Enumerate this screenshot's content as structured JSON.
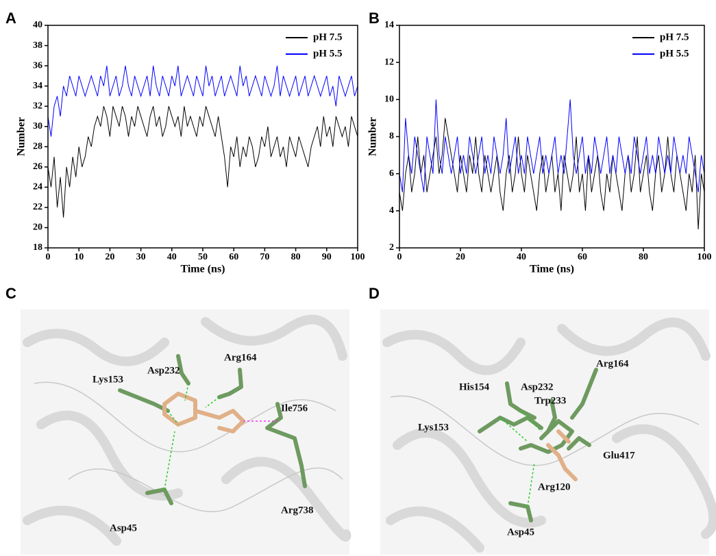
{
  "chart_data": [
    {
      "type": "line",
      "panel": "A",
      "xlabel": "Time (ns)",
      "ylabel": "Number",
      "legend": "upper right",
      "x": [
        0,
        1,
        2,
        3,
        4,
        5,
        6,
        7,
        8,
        9,
        10,
        11,
        12,
        13,
        14,
        15,
        16,
        17,
        18,
        19,
        20,
        21,
        22,
        23,
        24,
        25,
        26,
        27,
        28,
        29,
        30,
        31,
        32,
        33,
        34,
        35,
        36,
        37,
        38,
        39,
        40,
        41,
        42,
        43,
        44,
        45,
        46,
        47,
        48,
        49,
        50,
        51,
        52,
        53,
        54,
        55,
        56,
        57,
        58,
        59,
        60,
        61,
        62,
        63,
        64,
        65,
        66,
        67,
        68,
        69,
        70,
        71,
        72,
        73,
        74,
        75,
        76,
        77,
        78,
        79,
        80,
        81,
        82,
        83,
        84,
        85,
        86,
        87,
        88,
        89,
        90,
        91,
        92,
        93,
        94,
        95,
        96,
        97,
        98,
        99,
        100
      ],
      "series": [
        {
          "name": "pH 7.5",
          "color": "#000000",
          "values": [
            26,
            24,
            27,
            22,
            25,
            21,
            26,
            24,
            27,
            25,
            28,
            26,
            27,
            29,
            28,
            30,
            31,
            30,
            32,
            31,
            29,
            32,
            31,
            30,
            32,
            31,
            29,
            31,
            30,
            32,
            31,
            30,
            29,
            31,
            32,
            30,
            31,
            29,
            30,
            32,
            31,
            30,
            31,
            29,
            32,
            30,
            31,
            30,
            29,
            31,
            30,
            32,
            31,
            30,
            29,
            31,
            29,
            27,
            24,
            28,
            27,
            29,
            26,
            28,
            27,
            29,
            28,
            26,
            27,
            29,
            28,
            30,
            27,
            28,
            29,
            27,
            28,
            26,
            29,
            28,
            27,
            29,
            28,
            27,
            26,
            28,
            29,
            30,
            28,
            31,
            29,
            30,
            28,
            31,
            30,
            29,
            30,
            28,
            31,
            30,
            29
          ]
        },
        {
          "name": "pH 5.5",
          "color": "#0000ff",
          "values": [
            31,
            29,
            32,
            33,
            31,
            34,
            33,
            35,
            34,
            33,
            35,
            34,
            33,
            34,
            35,
            34,
            33,
            35,
            34,
            36,
            33,
            34,
            35,
            33,
            34,
            36,
            34,
            33,
            35,
            34,
            33,
            34,
            35,
            33,
            36,
            34,
            33,
            35,
            34,
            33,
            35,
            34,
            36,
            33,
            34,
            35,
            34,
            33,
            35,
            34,
            33,
            36,
            34,
            35,
            33,
            34,
            35,
            33,
            34,
            35,
            34,
            33,
            36,
            34,
            35,
            33,
            34,
            35,
            34,
            33,
            35,
            34,
            33,
            34,
            36,
            33,
            35,
            34,
            33,
            34,
            35,
            33,
            34,
            35,
            33,
            34,
            35,
            34,
            33,
            34,
            35,
            33,
            34,
            32,
            35,
            34,
            33,
            34,
            35,
            33,
            34
          ]
        }
      ],
      "xlim": [
        0,
        100
      ],
      "ylim": [
        18,
        40
      ],
      "xticks": [
        0,
        10,
        20,
        30,
        40,
        50,
        60,
        70,
        80,
        90,
        100
      ],
      "yticks": [
        18,
        20,
        22,
        24,
        26,
        28,
        30,
        32,
        34,
        36,
        38,
        40
      ]
    },
    {
      "type": "line",
      "panel": "B",
      "xlabel": "Time (ns)",
      "ylabel": "Number",
      "legend": "upper right",
      "x": [
        0,
        1,
        2,
        3,
        4,
        5,
        6,
        7,
        8,
        9,
        10,
        11,
        12,
        13,
        14,
        15,
        16,
        17,
        18,
        19,
        20,
        21,
        22,
        23,
        24,
        25,
        26,
        27,
        28,
        29,
        30,
        31,
        32,
        33,
        34,
        35,
        36,
        37,
        38,
        39,
        40,
        41,
        42,
        43,
        44,
        45,
        46,
        47,
        48,
        49,
        50,
        51,
        52,
        53,
        54,
        55,
        56,
        57,
        58,
        59,
        60,
        61,
        62,
        63,
        64,
        65,
        66,
        67,
        68,
        69,
        70,
        71,
        72,
        73,
        74,
        75,
        76,
        77,
        78,
        79,
        80,
        81,
        82,
        83,
        84,
        85,
        86,
        87,
        88,
        89,
        90,
        91,
        92,
        93,
        94,
        95,
        96,
        97,
        98,
        99,
        100
      ],
      "series": [
        {
          "name": "pH 7.5",
          "color": "#000000",
          "values": [
            5,
            4,
            6,
            7,
            5,
            6,
            8,
            6,
            7,
            5,
            6,
            7,
            8,
            6,
            7,
            9,
            8,
            7,
            6,
            5,
            7,
            6,
            5,
            7,
            6,
            8,
            6,
            5,
            7,
            6,
            5,
            6,
            7,
            5,
            4,
            6,
            7,
            5,
            6,
            8,
            6,
            5,
            7,
            6,
            5,
            4,
            6,
            7,
            5,
            6,
            7,
            5,
            6,
            4,
            7,
            6,
            5,
            6,
            8,
            5,
            6,
            4,
            7,
            5,
            6,
            7,
            5,
            4,
            6,
            5,
            7,
            6,
            5,
            4,
            6,
            7,
            5,
            6,
            8,
            5,
            6,
            7,
            5,
            4,
            6,
            7,
            5,
            6,
            8,
            6,
            5,
            7,
            6,
            5,
            4,
            6,
            5,
            7,
            3,
            6,
            5
          ]
        },
        {
          "name": "pH 5.5",
          "color": "#0000ff",
          "values": [
            6,
            5,
            9,
            7,
            6,
            8,
            7,
            6,
            5,
            8,
            7,
            6,
            10,
            7,
            6,
            8,
            7,
            6,
            7,
            8,
            6,
            7,
            6,
            8,
            7,
            6,
            7,
            8,
            6,
            7,
            6,
            8,
            7,
            6,
            7,
            9,
            6,
            7,
            8,
            6,
            7,
            6,
            8,
            7,
            6,
            7,
            8,
            6,
            7,
            6,
            7,
            8,
            6,
            7,
            6,
            8,
            10,
            7,
            6,
            7,
            8,
            6,
            7,
            6,
            8,
            7,
            6,
            7,
            8,
            6,
            7,
            6,
            8,
            7,
            6,
            7,
            6,
            8,
            7,
            6,
            7,
            8,
            6,
            7,
            6,
            8,
            7,
            6,
            7,
            6,
            8,
            7,
            6,
            7,
            6,
            8,
            7,
            6,
            5,
            7,
            6
          ]
        }
      ],
      "xlim": [
        0,
        100
      ],
      "ylim": [
        2,
        14
      ],
      "xticks": [
        0,
        20,
        40,
        60,
        80,
        100
      ],
      "yticks": [
        2,
        4,
        6,
        8,
        10,
        12,
        14
      ]
    }
  ],
  "images": [
    {
      "panel": "C",
      "labels": [
        "Lys153",
        "Asp232",
        "Arg164",
        "Ile756",
        "Asp45",
        "Arg738"
      ]
    },
    {
      "panel": "D",
      "labels": [
        "His154",
        "Asp232",
        "Trp233",
        "Arg164",
        "Lys153",
        "Glu417",
        "Arg120",
        "Asp45"
      ]
    }
  ]
}
